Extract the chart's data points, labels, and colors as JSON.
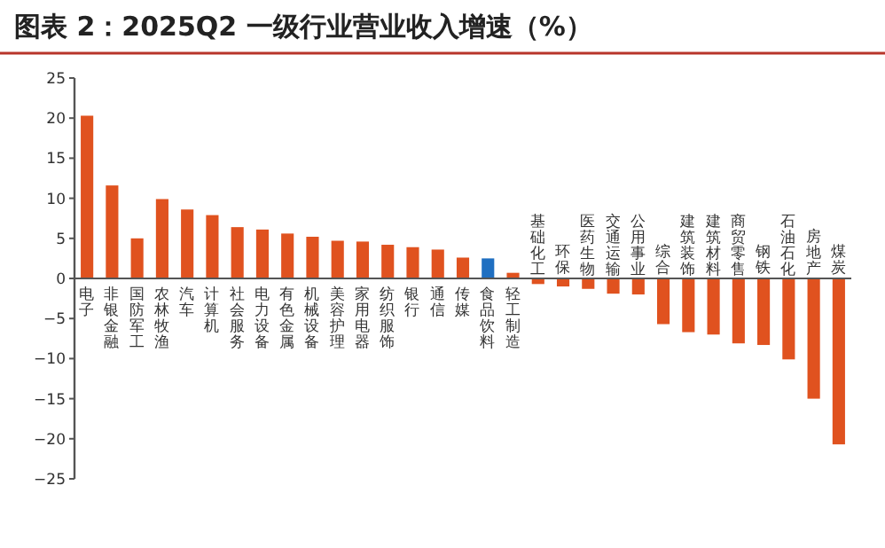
{
  "chart_data": {
    "type": "bar",
    "title": "图表 2：2025Q2 一级行业营业收入增速（%）",
    "categories": [
      "电子",
      "非银金融",
      "国防军工",
      "农林牧渔",
      "汽车",
      "计算机",
      "社会服务",
      "电力设备",
      "有色金属",
      "机械设备",
      "美容护理",
      "家用电器",
      "纺织服饰",
      "银行",
      "通信",
      "传媒",
      "食品饮料",
      "轻工制造",
      "基础化工",
      "环保",
      "医药生物",
      "交通运输",
      "公用事业",
      "综合",
      "建筑装饰",
      "建筑材料",
      "商贸零售",
      "钢铁",
      "石油石化",
      "房地产",
      "煤炭"
    ],
    "values": [
      20.3,
      11.6,
      5.0,
      9.9,
      8.6,
      7.9,
      6.4,
      6.1,
      5.6,
      5.2,
      4.7,
      4.6,
      4.2,
      3.9,
      3.6,
      2.6,
      2.5,
      0.7,
      -0.7,
      -1.0,
      -1.3,
      -1.9,
      -2.0,
      -5.7,
      -6.7,
      -7.0,
      -8.1,
      -8.3,
      -10.1,
      -15.0,
      -20.7
    ],
    "colors": [
      "#e0521f",
      "#e0521f",
      "#e0521f",
      "#e0521f",
      "#e0521f",
      "#e0521f",
      "#e0521f",
      "#e0521f",
      "#e0521f",
      "#e0521f",
      "#e0521f",
      "#e0521f",
      "#e0521f",
      "#e0521f",
      "#e0521f",
      "#e0521f",
      "#1f6fc1",
      "#e0521f",
      "#e0521f",
      "#e0521f",
      "#e0521f",
      "#e0521f",
      "#e0521f",
      "#e0521f",
      "#e0521f",
      "#e0521f",
      "#e0521f",
      "#e0521f",
      "#e0521f",
      "#e0521f",
      "#e0521f"
    ],
    "ylim": [
      -25,
      25
    ],
    "yticks": [
      -25,
      -20,
      -15,
      -10,
      -5,
      0,
      5,
      10,
      15,
      20,
      25
    ]
  }
}
